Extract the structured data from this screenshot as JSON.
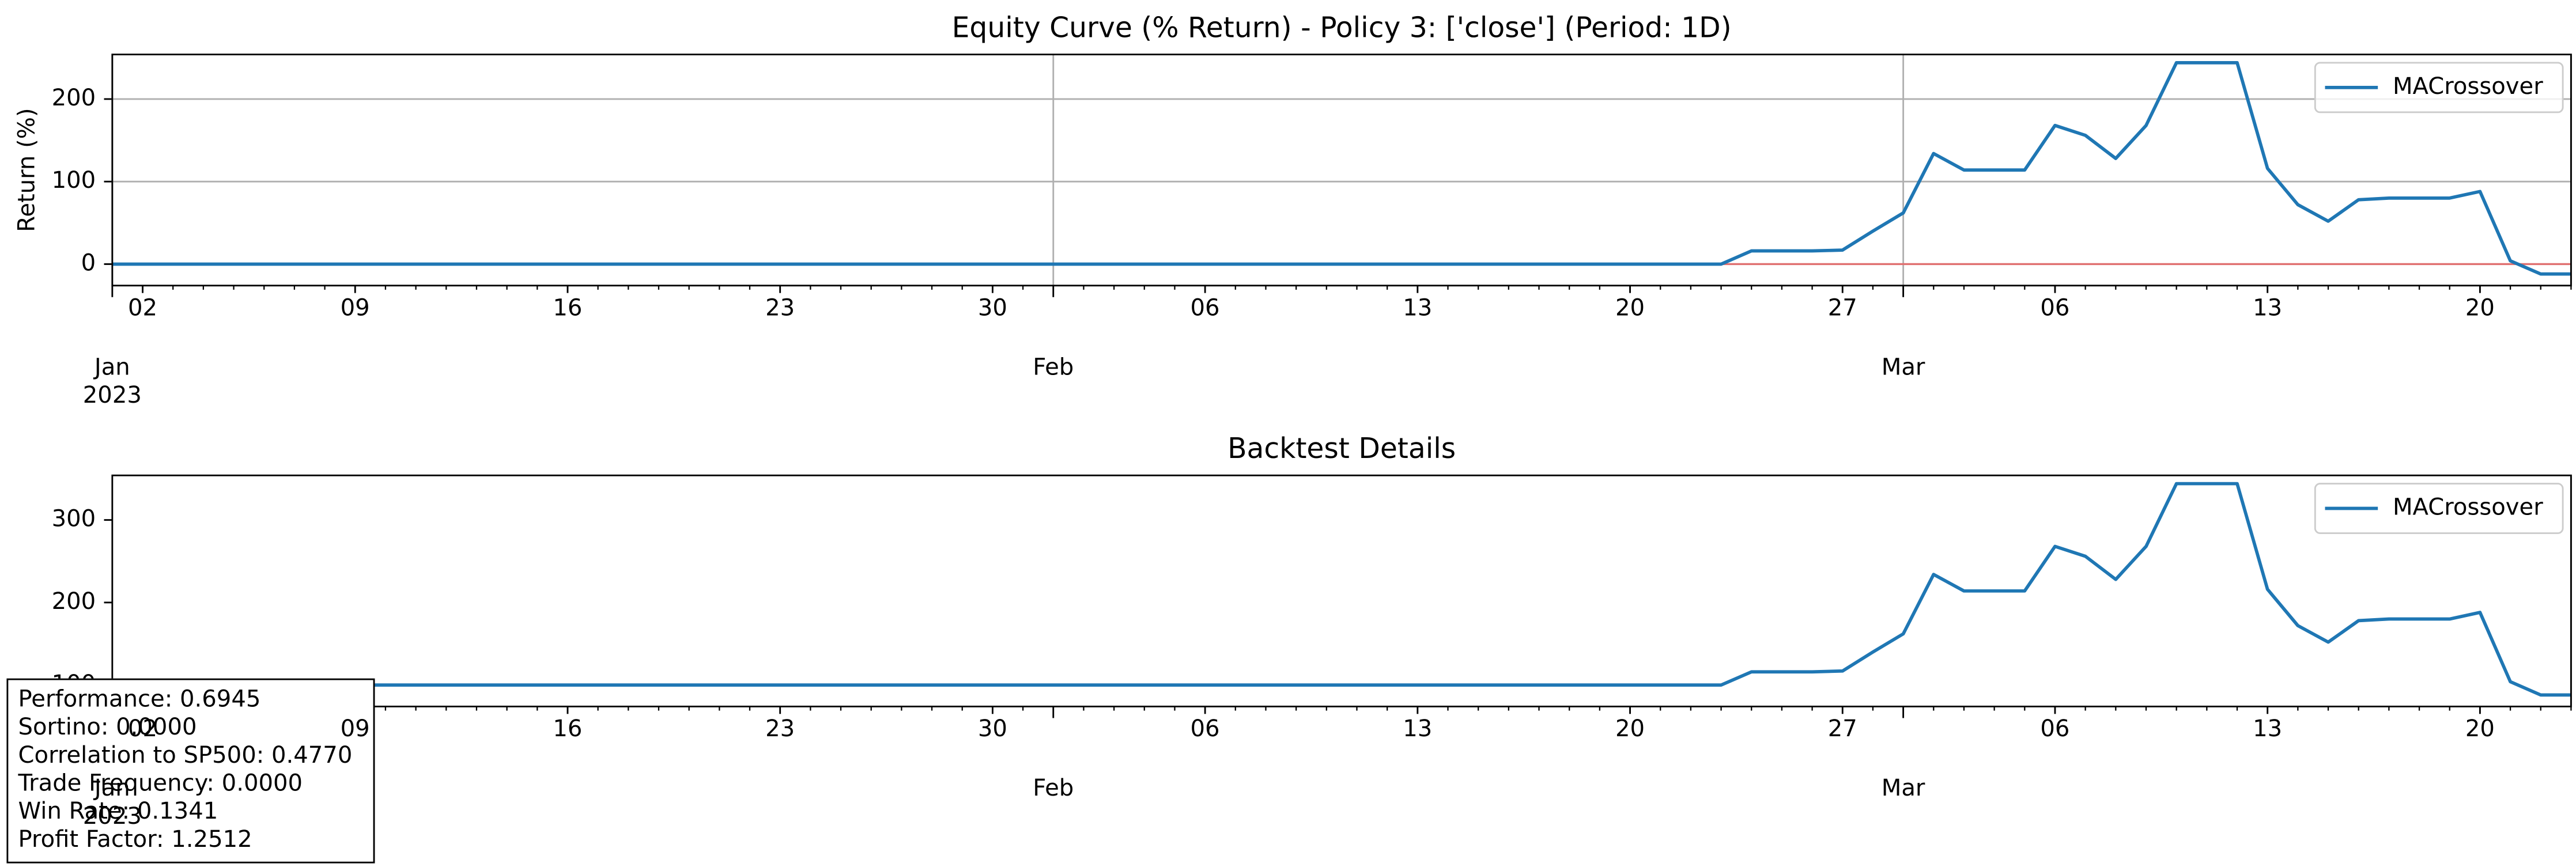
{
  "chart_data": [
    {
      "type": "line",
      "title": "Equity Curve (% Return) - Policy 3: ['close'] (Period: 1D)",
      "ylabel": "Return (%)",
      "x": [
        "2023-01-01",
        "2023-01-02",
        "2023-01-03",
        "2023-01-04",
        "2023-01-05",
        "2023-01-06",
        "2023-01-07",
        "2023-01-08",
        "2023-01-09",
        "2023-01-10",
        "2023-01-11",
        "2023-01-12",
        "2023-01-13",
        "2023-01-14",
        "2023-01-15",
        "2023-01-16",
        "2023-01-17",
        "2023-01-18",
        "2023-01-19",
        "2023-01-20",
        "2023-01-21",
        "2023-01-22",
        "2023-01-23",
        "2023-01-24",
        "2023-01-25",
        "2023-01-26",
        "2023-01-27",
        "2023-01-28",
        "2023-01-29",
        "2023-01-30",
        "2023-01-31",
        "2023-02-01",
        "2023-02-02",
        "2023-02-03",
        "2023-02-04",
        "2023-02-05",
        "2023-02-06",
        "2023-02-07",
        "2023-02-08",
        "2023-02-09",
        "2023-02-10",
        "2023-02-11",
        "2023-02-12",
        "2023-02-13",
        "2023-02-14",
        "2023-02-15",
        "2023-02-16",
        "2023-02-17",
        "2023-02-18",
        "2023-02-19",
        "2023-02-20",
        "2023-02-21",
        "2023-02-22",
        "2023-02-23",
        "2023-02-24",
        "2023-02-25",
        "2023-02-26",
        "2023-02-27",
        "2023-02-28",
        "2023-03-01",
        "2023-03-02",
        "2023-03-03",
        "2023-03-04",
        "2023-03-05",
        "2023-03-06",
        "2023-03-07",
        "2023-03-08",
        "2023-03-09",
        "2023-03-10",
        "2023-03-11",
        "2023-03-12",
        "2023-03-13",
        "2023-03-14",
        "2023-03-15",
        "2023-03-16",
        "2023-03-17",
        "2023-03-18",
        "2023-03-19",
        "2023-03-20",
        "2023-03-21",
        "2023-03-22",
        "2023-03-23"
      ],
      "series": [
        {
          "name": "MACrossover",
          "color": "#1f77b4",
          "values": [
            0,
            0,
            0,
            0,
            0,
            0,
            0,
            0,
            0,
            0,
            0,
            0,
            0,
            0,
            0,
            0,
            0,
            0,
            0,
            0,
            0,
            0,
            0,
            0,
            0,
            0,
            0,
            0,
            0,
            0,
            0,
            0,
            0,
            0,
            0,
            0,
            0,
            0,
            0,
            0,
            0,
            0,
            0,
            0,
            0,
            0,
            0,
            0,
            0,
            0,
            0,
            0,
            0,
            0,
            16,
            16,
            16,
            17,
            40,
            62,
            134,
            114,
            114,
            114,
            168,
            156,
            128,
            168,
            244,
            244,
            244,
            116,
            72,
            52,
            78,
            80,
            80,
            80,
            88,
            4,
            -12,
            -12
          ]
        }
      ],
      "hline": {
        "value": 0,
        "color": "#e07070"
      },
      "xlim": [
        "2023-01-01",
        "2023-03-23"
      ],
      "ylim": [
        -26,
        254
      ],
      "yticks": [
        0,
        100,
        200
      ],
      "xticks": [
        {
          "value": "2023-01-01",
          "label": "Jan\n2023"
        },
        {
          "value": "2023-01-02",
          "label": "02"
        },
        {
          "value": "2023-01-09",
          "label": "09"
        },
        {
          "value": "2023-01-16",
          "label": "16"
        },
        {
          "value": "2023-01-23",
          "label": "23"
        },
        {
          "value": "2023-01-30",
          "label": "30"
        },
        {
          "value": "2023-02-01",
          "label": "Feb"
        },
        {
          "value": "2023-02-06",
          "label": "06"
        },
        {
          "value": "2023-02-13",
          "label": "13"
        },
        {
          "value": "2023-02-20",
          "label": "20"
        },
        {
          "value": "2023-02-27",
          "label": "27"
        },
        {
          "value": "2023-03-01",
          "label": "Mar"
        },
        {
          "value": "2023-03-06",
          "label": "06"
        },
        {
          "value": "2023-03-13",
          "label": "13"
        },
        {
          "value": "2023-03-20",
          "label": "20"
        }
      ],
      "grid": true,
      "legend": "upper right"
    },
    {
      "type": "line",
      "title": "Backtest Details",
      "x": [
        "2023-01-01",
        "2023-01-02",
        "2023-01-03",
        "2023-01-04",
        "2023-01-05",
        "2023-01-06",
        "2023-01-07",
        "2023-01-08",
        "2023-01-09",
        "2023-01-10",
        "2023-01-11",
        "2023-01-12",
        "2023-01-13",
        "2023-01-14",
        "2023-01-15",
        "2023-01-16",
        "2023-01-17",
        "2023-01-18",
        "2023-01-19",
        "2023-01-20",
        "2023-01-21",
        "2023-01-22",
        "2023-01-23",
        "2023-01-24",
        "2023-01-25",
        "2023-01-26",
        "2023-01-27",
        "2023-01-28",
        "2023-01-29",
        "2023-01-30",
        "2023-01-31",
        "2023-02-01",
        "2023-02-02",
        "2023-02-03",
        "2023-02-04",
        "2023-02-05",
        "2023-02-06",
        "2023-02-07",
        "2023-02-08",
        "2023-02-09",
        "2023-02-10",
        "2023-02-11",
        "2023-02-12",
        "2023-02-13",
        "2023-02-14",
        "2023-02-15",
        "2023-02-16",
        "2023-02-17",
        "2023-02-18",
        "2023-02-19",
        "2023-02-20",
        "2023-02-21",
        "2023-02-22",
        "2023-02-23",
        "2023-02-24",
        "2023-02-25",
        "2023-02-26",
        "2023-02-27",
        "2023-02-28",
        "2023-03-01",
        "2023-03-02",
        "2023-03-03",
        "2023-03-04",
        "2023-03-05",
        "2023-03-06",
        "2023-03-07",
        "2023-03-08",
        "2023-03-09",
        "2023-03-10",
        "2023-03-11",
        "2023-03-12",
        "2023-03-13",
        "2023-03-14",
        "2023-03-15",
        "2023-03-16",
        "2023-03-17",
        "2023-03-18",
        "2023-03-19",
        "2023-03-20",
        "2023-03-21",
        "2023-03-22",
        "2023-03-23"
      ],
      "series": [
        {
          "name": "MACrossover",
          "color": "#1f77b4",
          "values": [
            100,
            100,
            100,
            100,
            100,
            100,
            100,
            100,
            100,
            100,
            100,
            100,
            100,
            100,
            100,
            100,
            100,
            100,
            100,
            100,
            100,
            100,
            100,
            100,
            100,
            100,
            100,
            100,
            100,
            100,
            100,
            100,
            100,
            100,
            100,
            100,
            100,
            100,
            100,
            100,
            100,
            100,
            100,
            100,
            100,
            100,
            100,
            100,
            100,
            100,
            100,
            100,
            100,
            100,
            116,
            116,
            116,
            117,
            140,
            162,
            234,
            214,
            214,
            214,
            268,
            256,
            228,
            268,
            344,
            344,
            344,
            216,
            172,
            152,
            178,
            180,
            180,
            180,
            188,
            104,
            88,
            88
          ]
        }
      ],
      "xlim": [
        "2023-01-01",
        "2023-03-23"
      ],
      "ylim": [
        74,
        354
      ],
      "yticks": [
        100,
        200,
        300
      ],
      "xticks": [
        {
          "value": "2023-01-01",
          "label": "Jan\n2023"
        },
        {
          "value": "2023-01-02",
          "label": "02"
        },
        {
          "value": "2023-01-09",
          "label": "09"
        },
        {
          "value": "2023-01-16",
          "label": "16"
        },
        {
          "value": "2023-01-23",
          "label": "23"
        },
        {
          "value": "2023-01-30",
          "label": "30"
        },
        {
          "value": "2023-02-01",
          "label": "Feb"
        },
        {
          "value": "2023-02-06",
          "label": "06"
        },
        {
          "value": "2023-02-13",
          "label": "13"
        },
        {
          "value": "2023-02-20",
          "label": "20"
        },
        {
          "value": "2023-02-27",
          "label": "27"
        },
        {
          "value": "2023-03-01",
          "label": "Mar"
        },
        {
          "value": "2023-03-06",
          "label": "06"
        },
        {
          "value": "2023-03-13",
          "label": "13"
        },
        {
          "value": "2023-03-20",
          "label": "20"
        }
      ],
      "grid": false,
      "legend": "upper right",
      "annotations": [
        "Performance: 0.6945",
        "Sortino: 0.0000",
        "Correlation to SP500: 0.4770",
        "Trade Frequency: 0.0000",
        "Win Rate: 0.1341",
        "Profit Factor: 1.2512"
      ]
    }
  ]
}
